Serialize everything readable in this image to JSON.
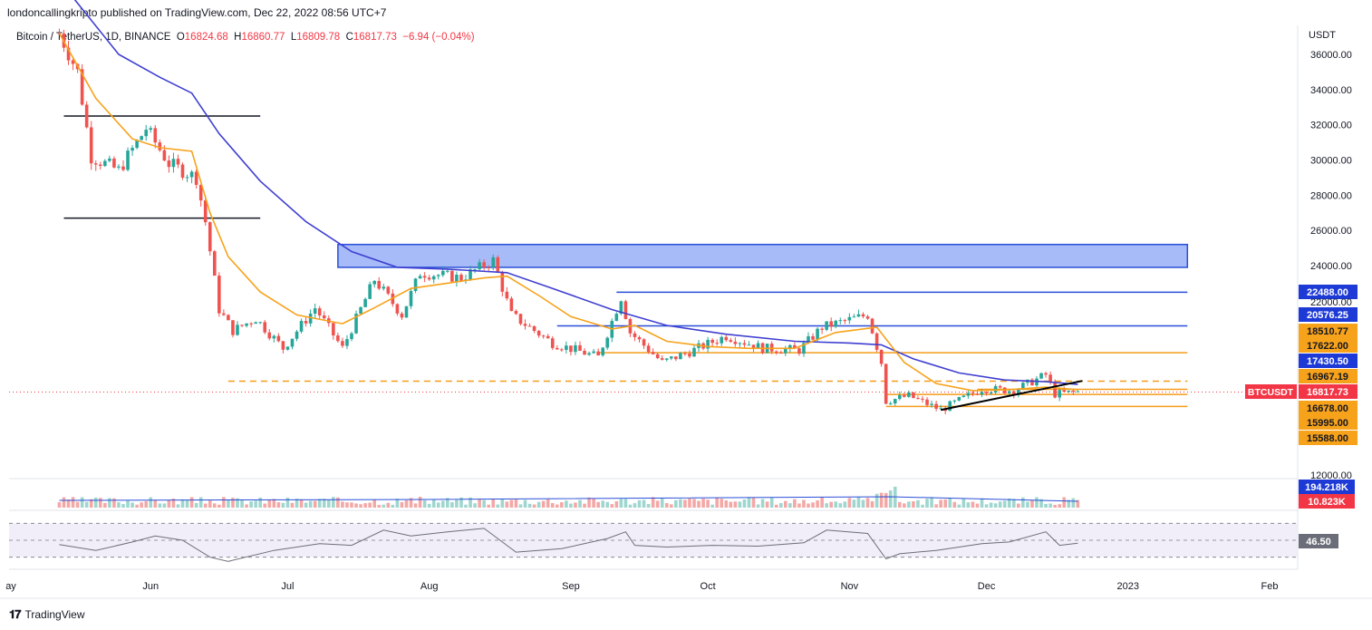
{
  "header": {
    "publisher_line": "londoncallingkripto published on TradingView.com, Dec 22, 2022 08:56 UTC+7"
  },
  "legend": {
    "symbol": "Bitcoin / TetherUS, 1D, BINANCE",
    "open_label": "O",
    "open": "16824.68",
    "high_label": "H",
    "high": "16860.77",
    "low_label": "L",
    "low": "16809.78",
    "close_label": "C",
    "close": "16817.73",
    "change": "−6.94 (−0.04%)"
  },
  "axis": {
    "unit": "USDT"
  },
  "footer": {
    "brand": "TradingView"
  },
  "colors": {
    "up": "#26a69a",
    "down": "#ef5350",
    "ema_fast": "#f7a21b",
    "ema_slow": "#3f3fd1",
    "zone": "#9db4f7",
    "level_blue": "#2a4fd8",
    "level_orange": "#f59c1a",
    "badge_dark_blue": "#1e3ad6",
    "badge_orange": "#f7a21b",
    "badge_red": "#f23645"
  },
  "chart_data": {
    "type": "candlestick",
    "title": "Bitcoin / TetherUS, 1D, BINANCE",
    "ylim": [
      11500,
      37500
    ],
    "y_ticks": [
      12000,
      24000,
      26000,
      28000,
      30000,
      32000,
      34000,
      36000
    ],
    "y_tick_labels": [
      "12000.00",
      "24000.00",
      "26000.00",
      "28000.00",
      "30000.00",
      "32000.00",
      "34000.00",
      "36000.00"
    ],
    "x_labels": [
      "ay",
      "Jun",
      "Jul",
      "Aug",
      "Sep",
      "Oct",
      "Nov",
      "Dec",
      "2023",
      "Feb"
    ],
    "price_badges": [
      {
        "label": "22488.00",
        "kind": "blue"
      },
      {
        "label": "22000.00",
        "kind": "tick"
      },
      {
        "label": "20576.25",
        "kind": "blue"
      },
      {
        "label": "18510.77",
        "kind": "orange"
      },
      {
        "label": "17622.00",
        "kind": "orange"
      },
      {
        "label": "17430.50",
        "kind": "blue"
      },
      {
        "label": "16967.19",
        "kind": "orange"
      },
      {
        "label": "16817.73",
        "kind": "red",
        "tag": "BTCUSDT"
      },
      {
        "label": "16678.00",
        "kind": "orange"
      },
      {
        "label": "15995.00",
        "kind": "orange"
      },
      {
        "label": "15588.00",
        "kind": "orange"
      }
    ],
    "ema_fast": [
      [
        "2022-05-12",
        37200
      ],
      [
        "2022-05-20",
        33500
      ],
      [
        "2022-05-28",
        31200
      ],
      [
        "2022-06-03",
        30700
      ],
      [
        "2022-06-10",
        30500
      ],
      [
        "2022-06-14",
        27000
      ],
      [
        "2022-06-18",
        24500
      ],
      [
        "2022-06-25",
        22500
      ],
      [
        "2022-07-03",
        21200
      ],
      [
        "2022-07-13",
        20700
      ],
      [
        "2022-07-20",
        21600
      ],
      [
        "2022-07-28",
        22700
      ],
      [
        "2022-08-05",
        23000
      ],
      [
        "2022-08-13",
        23300
      ],
      [
        "2022-08-18",
        23400
      ],
      [
        "2022-08-25",
        22300
      ],
      [
        "2022-09-01",
        21100
      ],
      [
        "2022-09-10",
        20400
      ],
      [
        "2022-09-15",
        20600
      ],
      [
        "2022-09-22",
        19700
      ],
      [
        "2022-10-01",
        19400
      ],
      [
        "2022-10-10",
        19300
      ],
      [
        "2022-10-20",
        19300
      ],
      [
        "2022-10-29",
        20200
      ],
      [
        "2022-11-07",
        20500
      ],
      [
        "2022-11-13",
        18500
      ],
      [
        "2022-11-20",
        17300
      ],
      [
        "2022-11-28",
        16900
      ],
      [
        "2022-12-06",
        16950
      ],
      [
        "2022-12-14",
        17100
      ],
      [
        "2022-12-21",
        16950
      ]
    ],
    "ema_slow": [
      [
        "2022-05-12",
        40200
      ],
      [
        "2022-05-25",
        36000
      ],
      [
        "2022-06-03",
        34700
      ],
      [
        "2022-06-10",
        33800
      ],
      [
        "2022-06-16",
        31500
      ],
      [
        "2022-06-25",
        28800
      ],
      [
        "2022-07-05",
        26500
      ],
      [
        "2022-07-15",
        24800
      ],
      [
        "2022-07-25",
        23900
      ],
      [
        "2022-08-05",
        23800
      ],
      [
        "2022-08-18",
        23600
      ],
      [
        "2022-08-28",
        22700
      ],
      [
        "2022-09-10",
        21500
      ],
      [
        "2022-09-22",
        20600
      ],
      [
        "2022-10-05",
        20100
      ],
      [
        "2022-10-20",
        19700
      ],
      [
        "2022-11-01",
        19600
      ],
      [
        "2022-11-08",
        19500
      ],
      [
        "2022-11-15",
        18700
      ],
      [
        "2022-11-25",
        17900
      ],
      [
        "2022-12-05",
        17500
      ],
      [
        "2022-12-14",
        17400
      ],
      [
        "2022-12-21",
        17250
      ]
    ],
    "price_anchors": [
      [
        "2022-05-12",
        37200
      ],
      [
        "2022-05-16",
        35000
      ],
      [
        "2022-05-19",
        30200
      ],
      [
        "2022-05-25",
        29400
      ],
      [
        "2022-05-31",
        31800
      ],
      [
        "2022-06-05",
        29800
      ],
      [
        "2022-06-11",
        29000
      ],
      [
        "2022-06-13",
        26500
      ],
      [
        "2022-06-16",
        21500
      ],
      [
        "2022-06-19",
        20300
      ],
      [
        "2022-06-24",
        21000
      ],
      [
        "2022-06-30",
        19300
      ],
      [
        "2022-07-07",
        21600
      ],
      [
        "2022-07-13",
        19300
      ],
      [
        "2022-07-20",
        23200
      ],
      [
        "2022-07-26",
        21200
      ],
      [
        "2022-07-30",
        23600
      ],
      [
        "2022-08-08",
        23300
      ],
      [
        "2022-08-15",
        24300
      ],
      [
        "2022-08-19",
        21200
      ],
      [
        "2022-08-28",
        19600
      ],
      [
        "2022-09-07",
        18800
      ],
      [
        "2022-09-12",
        22200
      ],
      [
        "2022-09-14",
        20200
      ],
      [
        "2022-09-21",
        18500
      ],
      [
        "2022-09-27",
        19100
      ],
      [
        "2022-10-05",
        20000
      ],
      [
        "2022-10-13",
        19300
      ],
      [
        "2022-10-21",
        19200
      ],
      [
        "2022-10-26",
        20500
      ],
      [
        "2022-11-05",
        21200
      ],
      [
        "2022-11-08",
        18500
      ],
      [
        "2022-11-09",
        16300
      ],
      [
        "2022-11-14",
        16600
      ],
      [
        "2022-11-21",
        15800
      ],
      [
        "2022-11-30",
        17000
      ],
      [
        "2022-12-07",
        16900
      ],
      [
        "2022-12-14",
        17800
      ],
      [
        "2022-12-16",
        16700
      ],
      [
        "2022-12-21",
        16820
      ]
    ],
    "zones": [
      {
        "from": "2022-07-12",
        "to": "2023-01-14",
        "low": 23900,
        "high": 25200
      }
    ],
    "levels": [
      {
        "price": 32500,
        "from": "2022-05-13",
        "to": "2022-06-25",
        "style": "solid",
        "color": "dark"
      },
      {
        "price": 26700,
        "from": "2022-05-13",
        "to": "2022-06-25",
        "style": "solid",
        "color": "dark"
      },
      {
        "price": 22488,
        "from": "2022-09-11",
        "to": "2023-01-14",
        "style": "solid",
        "color": "blue"
      },
      {
        "price": 20576.25,
        "from": "2022-08-29",
        "to": "2023-01-14",
        "style": "solid",
        "color": "blue"
      },
      {
        "price": 19050,
        "from": "2022-09-07",
        "to": "2023-01-14",
        "style": "solid",
        "color": "orange"
      },
      {
        "price": 17430.5,
        "from": "2022-06-18",
        "to": "2023-01-14",
        "style": "dashed",
        "color": "orange"
      },
      {
        "price": 16967.19,
        "from": "2022-11-29",
        "to": "2023-01-14",
        "style": "solid",
        "color": "orange"
      },
      {
        "price": 16678,
        "from": "2022-11-09",
        "to": "2023-01-14",
        "style": "solid",
        "color": "orange"
      },
      {
        "price": 15995,
        "from": "2022-11-09",
        "to": "2023-01-14",
        "style": "solid",
        "color": "orange"
      }
    ],
    "trendline": {
      "from": [
        "2022-11-21",
        15800
      ],
      "to": [
        "2022-12-22",
        17450
      ]
    },
    "volume_badges": [
      "194.218K",
      "10.823K"
    ],
    "rsi": {
      "value_label": "46.50",
      "bands": [
        70,
        50,
        30
      ],
      "series": [
        [
          "2022-05-12",
          45
        ],
        [
          "2022-05-20",
          38
        ],
        [
          "2022-05-28",
          48
        ],
        [
          "2022-06-02",
          55
        ],
        [
          "2022-06-08",
          50
        ],
        [
          "2022-06-14",
          30
        ],
        [
          "2022-06-18",
          25
        ],
        [
          "2022-06-28",
          38
        ],
        [
          "2022-07-08",
          46
        ],
        [
          "2022-07-15",
          44
        ],
        [
          "2022-07-22",
          62
        ],
        [
          "2022-07-28",
          55
        ],
        [
          "2022-08-05",
          60
        ],
        [
          "2022-08-13",
          64
        ],
        [
          "2022-08-20",
          36
        ],
        [
          "2022-08-30",
          40
        ],
        [
          "2022-09-09",
          52
        ],
        [
          "2022-09-13",
          60
        ],
        [
          "2022-09-15",
          44
        ],
        [
          "2022-09-22",
          42
        ],
        [
          "2022-10-02",
          44
        ],
        [
          "2022-10-12",
          43
        ],
        [
          "2022-10-22",
          47
        ],
        [
          "2022-10-27",
          62
        ],
        [
          "2022-11-05",
          58
        ],
        [
          "2022-11-09",
          28
        ],
        [
          "2022-11-12",
          34
        ],
        [
          "2022-11-20",
          38
        ],
        [
          "2022-11-30",
          46
        ],
        [
          "2022-12-06",
          48
        ],
        [
          "2022-12-14",
          60
        ],
        [
          "2022-12-17",
          44
        ],
        [
          "2022-12-21",
          46.5
        ]
      ]
    }
  }
}
